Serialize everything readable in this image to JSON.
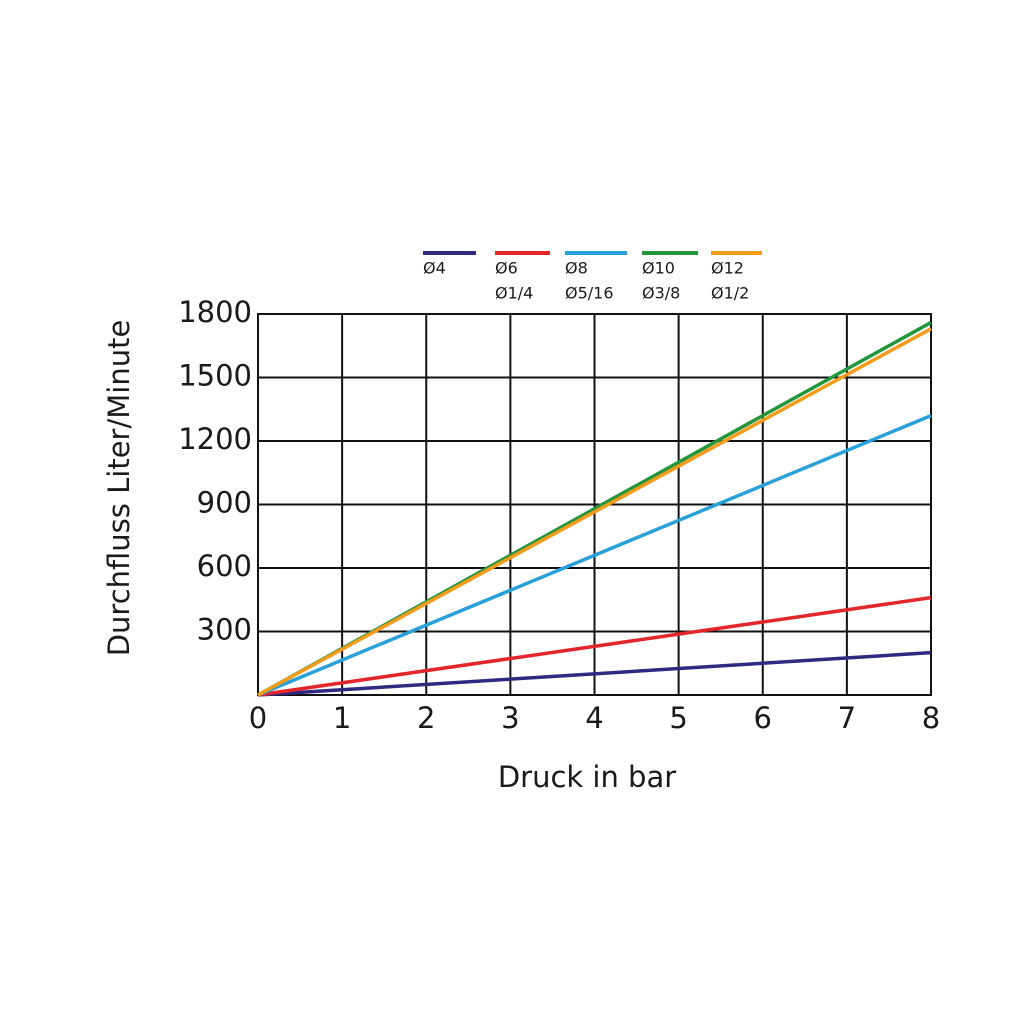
{
  "chart_data": {
    "type": "line",
    "xlabel": "Druck in bar",
    "ylabel": "Durchfluss Liter/Minute",
    "xlim": [
      0,
      8
    ],
    "xticks": [
      0,
      1,
      2,
      3,
      4,
      5,
      6,
      7,
      8
    ],
    "ylim": [
      0,
      1800
    ],
    "yticks": [
      300,
      600,
      900,
      1200,
      1500,
      1800
    ],
    "grid": true,
    "legend": "top",
    "series": [
      {
        "name": "Ø4",
        "color": "#2e2a7f",
        "x": [
          0,
          8
        ],
        "values": [
          0,
          200
        ]
      },
      {
        "name": "Ø6",
        "name_inch": "Ø1/4",
        "color": "#e3262b",
        "x": [
          0,
          8
        ],
        "values": [
          0,
          460
        ]
      },
      {
        "name": "Ø8",
        "name_inch": "Ø5/16",
        "color": "#2aa0d8",
        "x": [
          0,
          8
        ],
        "values": [
          0,
          1320
        ]
      },
      {
        "name": "Ø10",
        "name_inch": "Ø3/8",
        "color": "#23963c",
        "x": [
          0,
          8
        ],
        "values": [
          0,
          1760
        ]
      },
      {
        "name": "Ø12",
        "name_inch": "Ø1/2",
        "color": "#f29b1c",
        "x": [
          0,
          8
        ],
        "values": [
          0,
          1730
        ]
      }
    ]
  }
}
